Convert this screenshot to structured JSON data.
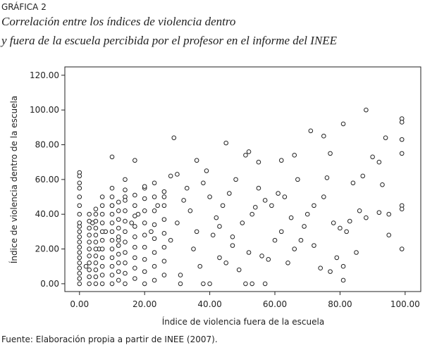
{
  "chart_data": {
    "type": "scatter",
    "title": "GRÁFICA 2",
    "subtitle": [
      "Correlación entre los índices de violencia dentro",
      "y fuera de la escuela percibida por el profesor en el informe del INEE"
    ],
    "xlabel": "Índice de violencia fuera de  la escuela",
    "ylabel": "Índice de violencia dentro de  la escuela",
    "source": "Fuente: Elaboración propia a partir de INEE (2007).",
    "xlim": [
      -4.5,
      104.8
    ],
    "ylim": [
      -4.5,
      124.8
    ],
    "xticks": [
      {
        "value": 0,
        "label": "0.00"
      },
      {
        "value": 20,
        "label": "20.00"
      },
      {
        "value": 40,
        "label": "40.00"
      },
      {
        "value": 60,
        "label": "60.00"
      },
      {
        "value": 80,
        "label": "80.00"
      },
      {
        "value": 100,
        "label": "100.00"
      }
    ],
    "yticks": [
      {
        "value": 0,
        "label": "0.00"
      },
      {
        "value": 20,
        "label": "20.00"
      },
      {
        "value": 40,
        "label": "40.00"
      },
      {
        "value": 60,
        "label": "60.00"
      },
      {
        "value": 80,
        "label": "80.00"
      },
      {
        "value": 100,
        "label": "100.00"
      },
      {
        "value": 120,
        "label": "120.00"
      }
    ],
    "color": "#222222",
    "x": [
      88,
      71,
      81,
      29,
      45,
      99,
      99,
      99,
      99,
      99,
      99,
      99,
      94,
      95,
      10,
      17,
      75,
      77,
      66,
      52,
      51,
      0,
      0,
      30,
      36,
      55,
      62,
      67,
      76,
      84,
      87,
      90,
      92,
      93,
      86,
      88,
      92,
      95,
      85,
      81,
      81,
      77,
      74,
      79,
      72,
      68,
      66,
      64,
      57,
      53,
      51,
      40,
      38,
      31,
      56,
      58,
      60,
      62,
      70,
      72,
      75,
      78,
      80,
      82,
      83,
      69,
      65,
      63,
      61,
      59,
      57,
      55,
      53,
      50,
      48,
      46,
      44,
      42,
      40,
      38,
      36,
      34,
      32,
      30,
      28,
      26,
      24,
      22,
      20,
      18,
      16,
      14,
      12,
      10,
      8,
      6,
      4,
      2,
      0,
      0,
      0,
      0,
      0,
      0,
      0,
      0,
      0,
      0,
      0,
      0,
      0,
      0,
      0,
      0,
      0,
      0,
      3,
      3,
      3,
      3,
      3,
      3,
      3,
      3,
      3,
      3,
      3,
      5,
      5,
      5,
      5,
      5,
      5,
      5,
      5,
      5,
      5,
      5,
      5,
      7,
      7,
      7,
      7,
      7,
      7,
      7,
      7,
      7,
      7,
      7,
      10,
      10,
      10,
      10,
      10,
      10,
      10,
      10,
      10,
      10,
      10,
      10,
      12,
      12,
      12,
      12,
      12,
      12,
      12,
      12,
      12,
      12,
      14,
      14,
      14,
      14,
      14,
      14,
      14,
      14,
      14,
      14,
      14,
      17,
      17,
      17,
      17,
      17,
      17,
      17,
      17,
      17,
      20,
      20,
      20,
      20,
      20,
      20,
      20,
      20,
      20,
      23,
      23,
      23,
      23,
      23,
      23,
      23,
      23,
      26,
      26,
      26,
      26,
      26,
      26,
      26,
      35,
      37,
      41,
      43,
      47,
      49,
      33,
      39,
      45,
      28,
      31,
      43,
      47,
      52,
      54
    ],
    "values": [
      100,
      88,
      92,
      84,
      81,
      95,
      93,
      83,
      75,
      45,
      43,
      20,
      84,
      28,
      73,
      71,
      85,
      75,
      74,
      76,
      74,
      64,
      62,
      63,
      71,
      70,
      71,
      60,
      61,
      58,
      62,
      73,
      70,
      57,
      42,
      38,
      41,
      40,
      18,
      10,
      2,
      7,
      9,
      15,
      22,
      25,
      20,
      12,
      0,
      0,
      0,
      0,
      0,
      0,
      16,
      14,
      25,
      30,
      40,
      45,
      50,
      35,
      32,
      30,
      36,
      33,
      38,
      50,
      52,
      45,
      48,
      55,
      40,
      35,
      60,
      52,
      45,
      38,
      50,
      58,
      30,
      42,
      48,
      35,
      25,
      50,
      45,
      30,
      55,
      40,
      35,
      50,
      25,
      45,
      30,
      20,
      35,
      10,
      0,
      3,
      6,
      9,
      12,
      15,
      18,
      21,
      24,
      27,
      30,
      33,
      35,
      40,
      45,
      50,
      55,
      58,
      0,
      4,
      8,
      12,
      16,
      20,
      24,
      28,
      32,
      36,
      40,
      0,
      4,
      8,
      12,
      16,
      20,
      24,
      28,
      32,
      36,
      40,
      43,
      0,
      5,
      10,
      15,
      20,
      25,
      30,
      35,
      40,
      45,
      50,
      0,
      5,
      10,
      15,
      20,
      25,
      30,
      35,
      40,
      45,
      50,
      55,
      2,
      7,
      12,
      17,
      22,
      27,
      32,
      37,
      42,
      47,
      0,
      6,
      12,
      18,
      24,
      30,
      36,
      42,
      48,
      54,
      60,
      3,
      9,
      15,
      21,
      27,
      33,
      39,
      45,
      51,
      0,
      7,
      14,
      21,
      28,
      35,
      42,
      49,
      56,
      2,
      10,
      18,
      26,
      34,
      42,
      50,
      58,
      5,
      13,
      21,
      29,
      37,
      45,
      53,
      20,
      10,
      28,
      15,
      22,
      8,
      55,
      65,
      12,
      62,
      5,
      33,
      27,
      18,
      44
    ]
  }
}
